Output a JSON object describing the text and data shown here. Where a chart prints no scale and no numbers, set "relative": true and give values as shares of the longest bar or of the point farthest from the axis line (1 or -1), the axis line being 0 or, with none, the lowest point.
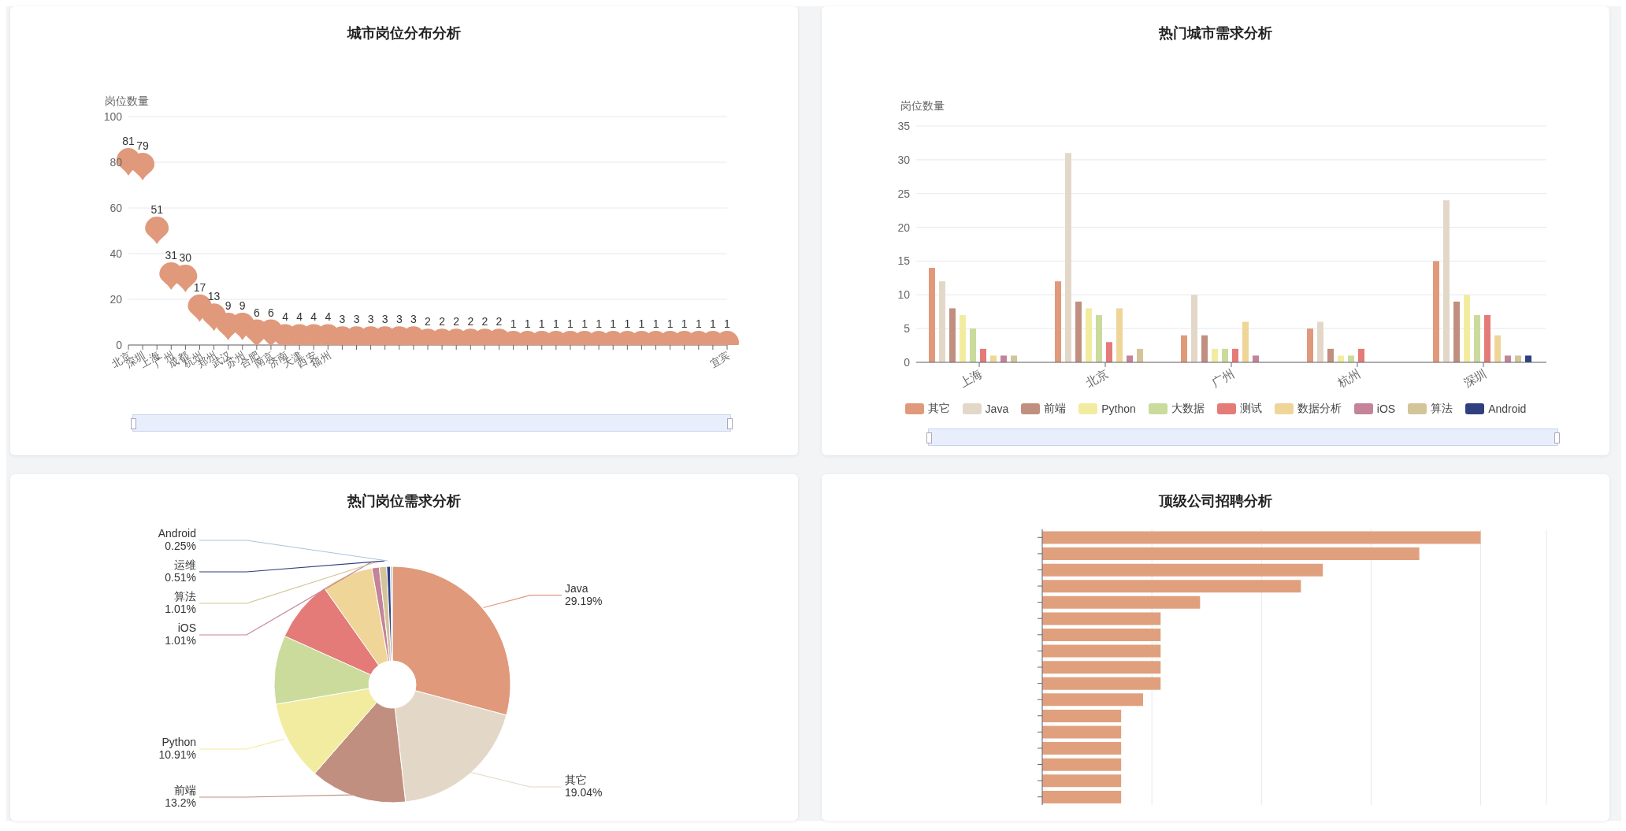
{
  "chart_data": [
    {
      "type": "scatter",
      "title": "城市岗位分布分析",
      "ylabel": "岗位数量",
      "categories": [
        "北京",
        "深圳",
        "上海",
        "广州",
        "成都",
        "杭州",
        "郑州",
        "武汉",
        "苏州",
        "合肥",
        "南京",
        "济南",
        "天津",
        "西安",
        "福州",
        null,
        null,
        null,
        null,
        null,
        null,
        null,
        null,
        null,
        null,
        null,
        null,
        null,
        null,
        null,
        null,
        null,
        null,
        null,
        null,
        null,
        null,
        null,
        null,
        null,
        null,
        null,
        "宜宾"
      ],
      "values": [
        81,
        79,
        51,
        31,
        30,
        17,
        13,
        9,
        9,
        6,
        6,
        4,
        4,
        4,
        4,
        3,
        3,
        3,
        3,
        3,
        3,
        2,
        2,
        2,
        2,
        2,
        2,
        1,
        1,
        1,
        1,
        1,
        1,
        1,
        1,
        1,
        1,
        1,
        1,
        1,
        1,
        1,
        1
      ],
      "color": "#e0997a",
      "ylim": [
        0,
        100
      ],
      "yticks": [
        0,
        20,
        40,
        60,
        80,
        100
      ],
      "grid": "y",
      "data_labels": true
    },
    {
      "type": "bar",
      "title": "热门城市需求分析",
      "ylabel": "岗位数量",
      "categories": [
        "上海",
        "北京",
        "广州",
        "杭州",
        "深圳"
      ],
      "series": [
        {
          "name": "其它",
          "color": "#e0997a",
          "values": [
            14,
            12,
            4,
            5,
            15
          ]
        },
        {
          "name": "Java",
          "color": "#e3d8c8",
          "values": [
            12,
            31,
            10,
            6,
            24
          ]
        },
        {
          "name": "前端",
          "color": "#c08f80",
          "values": [
            8,
            9,
            4,
            2,
            9
          ]
        },
        {
          "name": "Python",
          "color": "#f2eca0",
          "values": [
            7,
            8,
            2,
            1,
            10
          ]
        },
        {
          "name": "大数据",
          "color": "#cadb9c",
          "values": [
            5,
            7,
            2,
            1,
            7
          ]
        },
        {
          "name": "测试",
          "color": "#e47b78",
          "values": [
            2,
            3,
            2,
            2,
            7
          ]
        },
        {
          "name": "数据分析",
          "color": "#efd597",
          "values": [
            1,
            8,
            6,
            null,
            4
          ]
        },
        {
          "name": "iOS",
          "color": "#c48398",
          "values": [
            1,
            1,
            1,
            null,
            1
          ]
        },
        {
          "name": "算法",
          "color": "#d4c49a",
          "values": [
            1,
            2,
            null,
            null,
            1
          ]
        },
        {
          "name": "Android",
          "color": "#2f3f7f",
          "values": [
            null,
            null,
            null,
            null,
            1
          ]
        }
      ],
      "ylim": [
        0,
        35
      ],
      "yticks": [
        0,
        5,
        10,
        15,
        20,
        25,
        30,
        35
      ],
      "grid": "y",
      "legend": "bottom"
    },
    {
      "type": "donut",
      "title": "热门岗位需求分析",
      "categories": [
        "Java",
        "其它",
        "前端",
        "Python",
        null,
        null,
        null,
        "iOS",
        "算法",
        "运维",
        "Android"
      ],
      "values": [
        29.19,
        19.04,
        13.2,
        10.91,
        9.4,
        8.5,
        7.0,
        1.01,
        1.01,
        0.51,
        0.25
      ],
      "colors": [
        "#e0997a",
        "#e3d8c8",
        "#c08f80",
        "#f2eca0",
        "#cadb9c",
        "#e47b78",
        "#efd597",
        "#c48398",
        "#d4c49a",
        "#2f3f7f",
        "#a9c4e0"
      ],
      "value_labels": [
        "29.19%",
        "19.04%",
        "13.2%",
        "10.91%",
        null,
        null,
        null,
        "1.01%",
        "1.01%",
        "0.51%",
        "0.25%"
      ]
    },
    {
      "type": "bar",
      "orientation": "horizontal",
      "relative": true,
      "title": "顶级公司招聘分析",
      "categories": [
        null,
        null,
        null,
        null,
        null,
        null,
        null,
        null,
        null,
        null,
        null,
        null,
        null,
        null,
        null,
        null,
        null
      ],
      "values": [
        1,
        0.86,
        0.64,
        0.59,
        0.36,
        0.27,
        0.27,
        0.27,
        0.27,
        0.27,
        0.23,
        0.18,
        0.18,
        0.18,
        0.18,
        0.18,
        0.18
      ],
      "color": "#e0a07e",
      "grid": "x"
    }
  ]
}
